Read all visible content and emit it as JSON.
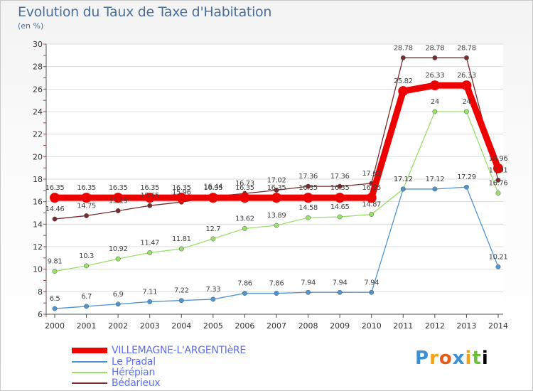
{
  "header": {
    "title": "Evolution du Taux de Taxe d'Habitation",
    "subtitle": "(en %)"
  },
  "brand": {
    "text": "Proxiti"
  },
  "chart_data": {
    "type": "line",
    "title": "Evolution du Taux de Taxe d'Habitation",
    "ylabel": "(en %)",
    "xlabel": "",
    "ylim": [
      6,
      30
    ],
    "yticks": [
      6,
      8,
      10,
      12,
      14,
      16,
      18,
      20,
      22,
      24,
      26,
      28,
      30
    ],
    "grid": true,
    "legend_position": "bottom-left",
    "categories": [
      "2000",
      "2001",
      "2002",
      "2003",
      "2004",
      "2005",
      "2006",
      "2007",
      "2008",
      "2009",
      "2010",
      "2011",
      "2012",
      "2013",
      "2014"
    ],
    "series": [
      {
        "name": "VILLEMAGNE-L'ARGENTIèRE",
        "color": "#ee0000",
        "values": [
          16.35,
          16.35,
          16.35,
          16.35,
          16.35,
          16.35,
          16.35,
          16.35,
          16.35,
          16.35,
          16.35,
          25.82,
          26.33,
          26.33,
          18.96
        ],
        "labels": [
          "16.35",
          "16.35",
          "16.35",
          "16.35",
          "16.35",
          "16.35",
          "16.35",
          "16.35",
          "16.35",
          "16.35",
          "16.35",
          "25.82",
          "26.33",
          "26.33",
          "18.96"
        ]
      },
      {
        "name": "Le Pradal",
        "color": "#4f95d0",
        "values": [
          6.5,
          6.7,
          6.9,
          7.11,
          7.22,
          7.33,
          7.86,
          7.86,
          7.94,
          7.94,
          7.94,
          17.12,
          17.12,
          17.29,
          10.21
        ],
        "labels": [
          "6.5",
          "6.7",
          "6.9",
          "7.11",
          "7.22",
          "7.33",
          "7.86",
          "7.86",
          "7.94",
          "7.94",
          "7.94",
          "17.12",
          "17.12",
          "17.29",
          "10.21"
        ]
      },
      {
        "name": "Hérépian",
        "color": "#99e06a",
        "values": [
          9.81,
          10.3,
          10.92,
          11.47,
          11.81,
          12.7,
          13.62,
          13.89,
          14.58,
          14.65,
          14.87,
          17.12,
          24,
          24,
          16.76
        ],
        "labels": [
          "9.81",
          "10.3",
          "10.92",
          "11.47",
          "11.81",
          "12.7",
          "13.62",
          "13.89",
          "14.58",
          "14.65",
          "14.87",
          "17.12",
          "24",
          "24",
          "16.76"
        ]
      },
      {
        "name": "Bédarieux",
        "color": "#7a2a2a",
        "values": [
          14.46,
          14.75,
          15.19,
          15.65,
          15.96,
          16.44,
          16.73,
          17.02,
          17.36,
          17.36,
          17.62,
          28.78,
          28.78,
          28.78,
          17.91
        ],
        "labels": [
          "14.46",
          "14.75",
          "15.19",
          "15.65",
          "15.96",
          "16.44",
          "16.73",
          "17.02",
          "17.36",
          "17.36",
          "17.62",
          "28.78",
          "28.78",
          "28.78",
          "17.91"
        ]
      }
    ]
  }
}
